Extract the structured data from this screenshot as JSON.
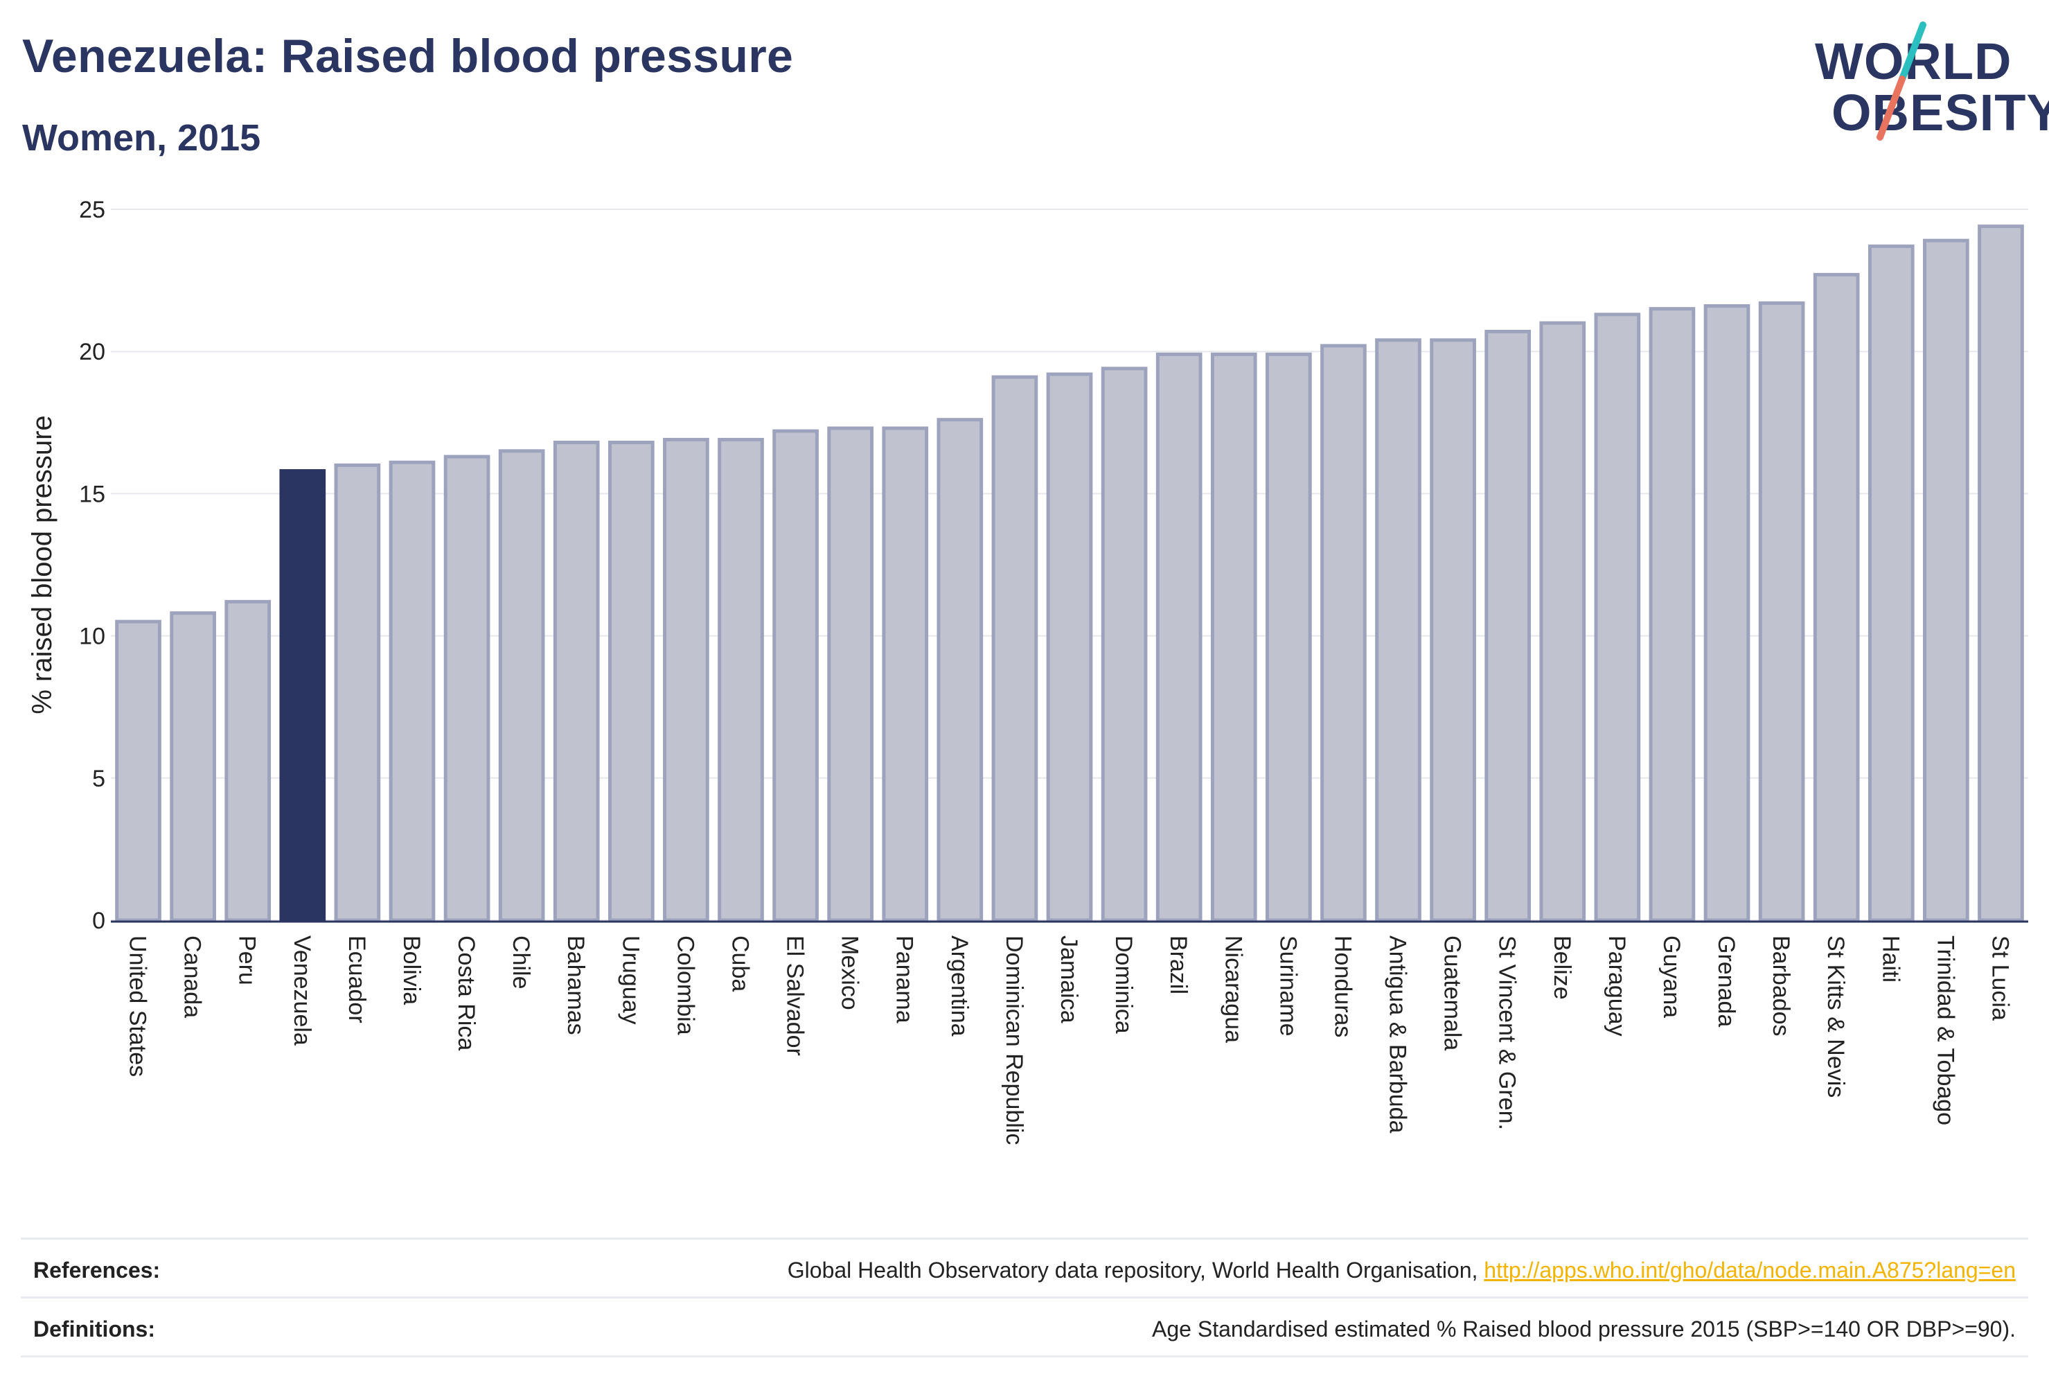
{
  "header": {
    "title": "Venezuela: Raised blood pressure",
    "subtitle": "Women, 2015"
  },
  "logo": {
    "line1": "WORLD",
    "line2": "OBESITY",
    "slash_color_top": "#2bbfbf",
    "slash_color_bottom": "#e8735e"
  },
  "colors": {
    "highlight_bar": "#2b3561",
    "bar_fill": "#c0c3cf",
    "bar_stroke": "#9ea3bd",
    "gridline": "#e6e8ee",
    "axis": "#2b3561"
  },
  "chart_data": {
    "type": "bar",
    "title": "Venezuela: Raised blood pressure",
    "subtitle": "Women, 2015",
    "ylabel": "% raised blood pressure",
    "xlabel": "",
    "ylim": [
      0,
      25
    ],
    "yticks": [
      0,
      5,
      10,
      15,
      20,
      25
    ],
    "grid": true,
    "highlight": "Venezuela",
    "categories": [
      "United States",
      "Canada",
      "Peru",
      "Venezuela",
      "Ecuador",
      "Bolivia",
      "Costa Rica",
      "Chile",
      "Bahamas",
      "Uruguay",
      "Colombia",
      "Cuba",
      "El Salvador",
      "Mexico",
      "Panama",
      "Argentina",
      "Dominican Republic",
      "Jamaica",
      "Dominica",
      "Brazil",
      "Nicaragua",
      "Suriname",
      "Honduras",
      "Antigua & Barbuda",
      "Guatemala",
      "St Vincent & Gren.",
      "Belize",
      "Paraguay",
      "Guyana",
      "Grenada",
      "Barbados",
      "St Kitts & Nevis",
      "Haiti",
      "Trinidad & Tobago",
      "St Lucia"
    ],
    "values": [
      10.5,
      10.8,
      11.2,
      15.8,
      16.0,
      16.1,
      16.3,
      16.5,
      16.8,
      16.8,
      16.9,
      16.9,
      17.2,
      17.3,
      17.3,
      17.6,
      19.1,
      19.2,
      19.4,
      19.9,
      19.9,
      19.9,
      20.2,
      20.4,
      20.4,
      20.7,
      21.0,
      21.3,
      21.5,
      21.6,
      21.7,
      22.7,
      23.7,
      23.9,
      24.4
    ]
  },
  "footer": {
    "references_label": "References:",
    "references_text": "Global Health Observatory data repository, World Health Organisation, ",
    "references_link": "http://apps.who.int/gho/data/node.main.A875?lang=en",
    "definitions_label": "Definitions:",
    "definitions_text": "Age Standardised estimated % Raised blood pressure 2015 (SBP>=140 OR DBP>=90)."
  }
}
